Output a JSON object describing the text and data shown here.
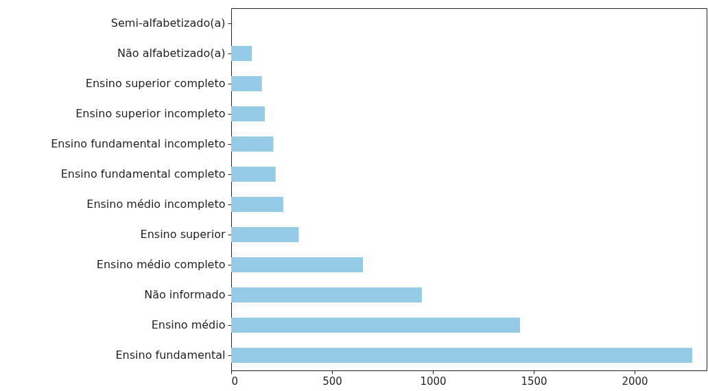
{
  "chart_data": {
    "type": "bar",
    "orientation": "horizontal",
    "categories": [
      "Semi-alfabetizado(a)",
      "Não alfabetizado(a)",
      "Ensino superior completo",
      "Ensino superior incompleto",
      "Ensino fundamental incompleto",
      "Ensino fundamental completo",
      "Ensino médio incompleto",
      "Ensino superior",
      "Ensino médio completo",
      "Não informado",
      "Ensino médio",
      "Ensino fundamental"
    ],
    "values": [
      null,
      102,
      152,
      167,
      209,
      220,
      258,
      335,
      653,
      945,
      1432,
      2286
    ],
    "color": "#96cbe8",
    "xlim": [
      0,
      2357
    ],
    "xticks": [
      0,
      500,
      1000,
      1500,
      2000
    ],
    "grid": false
  }
}
